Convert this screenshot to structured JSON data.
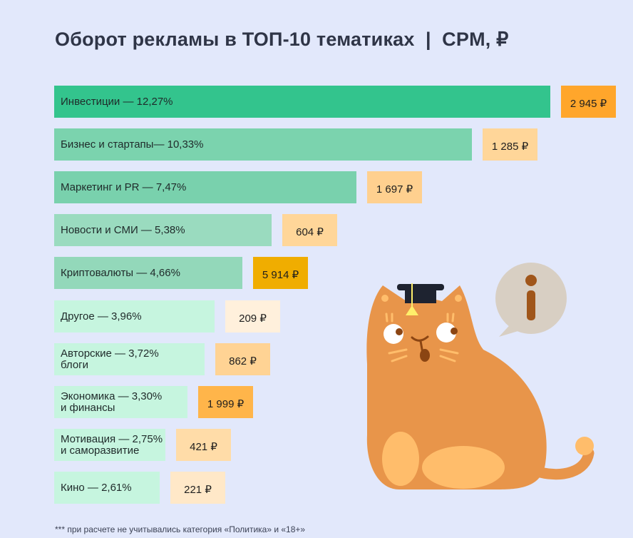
{
  "chart_data": {
    "type": "bar",
    "title": "Оборот рекламы в ТОП-10 тематиках  |  CPM, ₽",
    "orientation": "horizontal",
    "categories": [
      "Инвестиции — 12,27%",
      "Бизнес и стартапы— 10,33%",
      "Маркетинг и PR — 7,47%",
      "Новости и СМИ — 5,38%",
      "Криптовалюты — 4,66%",
      "Другое — 3,96%",
      "Авторские — 3,72%\nблоги",
      "Экономика — 3,30%\nи финансы",
      "Мотивация — 2,75%\nи саморазвитие",
      "Кино  — 2,61%"
    ],
    "values": [
      12.27,
      10.33,
      7.47,
      5.38,
      4.66,
      3.96,
      3.72,
      3.3,
      2.75,
      2.61
    ],
    "cpm_labels": [
      "2 945 ₽",
      "1 285 ₽",
      "1 697 ₽",
      "604 ₽",
      "5 914 ₽",
      "209 ₽",
      "862 ₽",
      "1 999 ₽",
      "421 ₽",
      "221 ₽"
    ],
    "bar_colors": [
      "#33c48d",
      "#7bd3ae",
      "#79d1ad",
      "#9adbbf",
      "#93d8ba",
      "#c6f5df",
      "#c6f5df",
      "#c6f5df",
      "#c6f5df",
      "#c6f5df"
    ],
    "cpm_colors": [
      "#ffa62b",
      "#ffd699",
      "#ffd08f",
      "#ffd699",
      "#f0ad00",
      "#fff0dc",
      "#ffd394",
      "#ffb54a",
      "#ffdca8",
      "#ffe8c8"
    ],
    "xlabel": "",
    "ylabel": "",
    "grid": false
  },
  "footnote": "*** при расчете не учитывались категория «Политика» и «18+»",
  "illustration": {
    "cat_color": "#e8954a",
    "bubble_icon": "info-icon"
  }
}
